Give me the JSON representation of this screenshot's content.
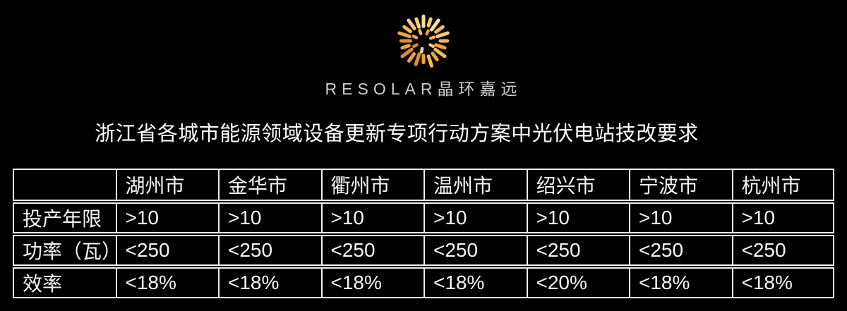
{
  "logo": {
    "text": "RESOLAR晶环嘉远",
    "icon": "starburst-icon",
    "ray_colors": [
      "#e08c2e",
      "#eda33f",
      "#f3bb55",
      "#f6cd74",
      "#f9dd90"
    ]
  },
  "title": "浙江省各城市能源领域设备更新专项行动方案中光伏电站技改要求",
  "table": {
    "corner": "",
    "headers": [
      "湖州市",
      "金华市",
      "衢州市",
      "温州市",
      "绍兴市",
      "宁波市",
      "杭州市"
    ],
    "rows": [
      {
        "label": "投产年限",
        "values": [
          ">10",
          ">10",
          ">10",
          ">10",
          ">10",
          ">10",
          ">10"
        ]
      },
      {
        "label": "功率（瓦）",
        "values": [
          "<250",
          "<250",
          "<250",
          "<250",
          "<250",
          "<250",
          "<250"
        ]
      },
      {
        "label": "效率",
        "values": [
          "<18%",
          "<18%",
          "<18%",
          "<18%",
          "<20%",
          "<18%",
          "<18%"
        ]
      }
    ],
    "colors": {
      "border": "#f0f0f0",
      "text": "#f5f5f5",
      "background": "#000000"
    }
  }
}
